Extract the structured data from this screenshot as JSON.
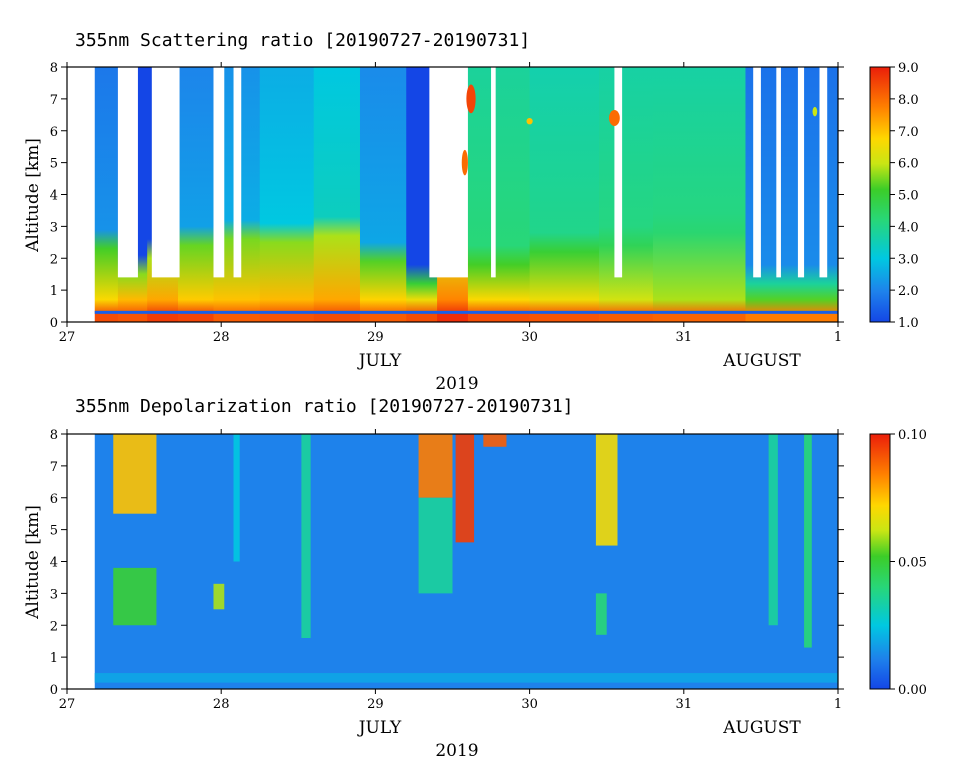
{
  "chart_data": [
    {
      "type": "heatmap",
      "title": "355nm Scattering ratio [20190727-20190731]",
      "ylabel": "Altitude [km]",
      "xlim": [
        27,
        32
      ],
      "ylim": [
        0,
        8
      ],
      "x_ticks": [
        "27",
        "28",
        "29",
        "30",
        "31",
        "1"
      ],
      "y_ticks": [
        "0",
        "1",
        "2",
        "3",
        "4",
        "5",
        "6",
        "7",
        "8"
      ],
      "month_labels": [
        {
          "text": "JULY",
          "x": 29.5
        },
        {
          "text": "AUGUST",
          "x": 31.5
        }
      ],
      "year_label": "2019",
      "colorbar": {
        "min": 1.0,
        "max": 9.0,
        "ticks": [
          "1.0",
          "2.0",
          "3.0",
          "4.0",
          "5.0",
          "6.0",
          "7.0",
          "8.0",
          "9.0"
        ]
      },
      "data_start": 27.18,
      "data_end": 32.0,
      "columns": [
        {
          "x0": 27.18,
          "x1": 27.33,
          "surface": 8.4,
          "low": 5.2,
          "top_km": 2.3,
          "free": 2.2
        },
        {
          "x0": 27.33,
          "x1": 27.52,
          "surface": 8.3,
          "low": 5.6,
          "top_km": 1.5,
          "free": 0
        },
        {
          "x0": 27.52,
          "x1": 27.72,
          "surface": 8.6,
          "low": 5.8,
          "top_km": 2.0,
          "free": 0
        },
        {
          "x0": 27.72,
          "x1": 27.95,
          "surface": 8.5,
          "low": 5.4,
          "top_km": 2.4,
          "free": 2.4
        },
        {
          "x0": 27.95,
          "x1": 28.25,
          "surface": 8.2,
          "low": 5.5,
          "top_km": 2.6,
          "free": 2.6
        },
        {
          "x0": 28.25,
          "x1": 28.6,
          "surface": 8.3,
          "low": 5.6,
          "top_km": 2.5,
          "free": 3.0
        },
        {
          "x0": 28.6,
          "x1": 28.9,
          "surface": 8.4,
          "low": 5.8,
          "top_km": 2.7,
          "free": 3.4
        },
        {
          "x0": 28.9,
          "x1": 29.2,
          "surface": 8.2,
          "low": 5.3,
          "top_km": 1.9,
          "free": 2.5
        },
        {
          "x0": 29.2,
          "x1": 29.4,
          "surface": 8.4,
          "low": 5.0,
          "top_km": 1.2,
          "free": 0
        },
        {
          "x0": 29.4,
          "x1": 29.6,
          "surface": 8.8,
          "low": 6.2,
          "top_km": 2.3,
          "free": 3.8
        },
        {
          "x0": 29.6,
          "x1": 30.0,
          "surface": 8.4,
          "low": 5.2,
          "top_km": 1.8,
          "free": 4.2
        },
        {
          "x0": 30.0,
          "x1": 30.45,
          "surface": 8.3,
          "low": 5.0,
          "top_km": 2.2,
          "free": 4.0
        },
        {
          "x0": 30.45,
          "x1": 30.8,
          "surface": 8.2,
          "low": 4.6,
          "top_km": 2.4,
          "free": 4.1
        },
        {
          "x0": 30.8,
          "x1": 31.4,
          "surface": 8.1,
          "low": 4.3,
          "top_km": 2.8,
          "free": 4.1
        },
        {
          "x0": 31.4,
          "x1": 32.0,
          "surface": 7.8,
          "low": 3.8,
          "top_km": 1.2,
          "free": 2.1
        }
      ],
      "clear_gaps": [
        [
          27.33,
          27.46
        ],
        [
          27.55,
          27.73
        ],
        [
          27.95,
          28.02
        ],
        [
          28.08,
          28.13
        ],
        [
          29.35,
          29.6
        ],
        [
          29.75,
          29.78
        ],
        [
          30.55,
          30.6
        ],
        [
          31.45,
          31.5
        ],
        [
          31.6,
          31.63
        ],
        [
          31.74,
          31.78
        ],
        [
          31.88,
          31.93
        ]
      ],
      "clouds": [
        {
          "x": 29.62,
          "z": 7.0,
          "w": 0.06,
          "h": 0.9,
          "value": 8.5
        },
        {
          "x": 29.58,
          "z": 5.0,
          "w": 0.04,
          "h": 0.8,
          "value": 8.0
        },
        {
          "x": 30.55,
          "z": 6.4,
          "w": 0.07,
          "h": 0.5,
          "value": 8.0
        },
        {
          "x": 30.0,
          "z": 6.3,
          "w": 0.04,
          "h": 0.2,
          "value": 7.0
        },
        {
          "x": 31.85,
          "z": 6.6,
          "w": 0.03,
          "h": 0.3,
          "value": 6.0
        }
      ]
    },
    {
      "type": "heatmap",
      "title": "355nm Depolarization ratio [20190727-20190731]",
      "ylabel": "Altitude [km]",
      "xlim": [
        27,
        32
      ],
      "ylim": [
        0,
        8
      ],
      "x_ticks": [
        "27",
        "28",
        "29",
        "30",
        "31",
        "1"
      ],
      "y_ticks": [
        "0",
        "1",
        "2",
        "3",
        "4",
        "5",
        "6",
        "7",
        "8"
      ],
      "month_labels": [
        {
          "text": "JULY",
          "x": 29.5
        },
        {
          "text": "AUGUST",
          "x": 31.5
        }
      ],
      "year_label": "2019",
      "colorbar": {
        "min": 0.0,
        "max": 0.1,
        "ticks": [
          "0.00",
          "0.05",
          "0.10"
        ]
      },
      "data_start": 27.18,
      "data_end": 32.0,
      "background": 0.012,
      "near_surface": 0.018,
      "features": [
        {
          "x0": 27.3,
          "x1": 27.58,
          "z0": 5.5,
          "z1": 8.0,
          "value": 0.075
        },
        {
          "x0": 27.3,
          "x1": 27.58,
          "z0": 2.0,
          "z1": 3.8,
          "value": 0.05
        },
        {
          "x0": 27.95,
          "x1": 28.02,
          "z0": 2.5,
          "z1": 3.3,
          "value": 0.06
        },
        {
          "x0": 28.08,
          "x1": 28.12,
          "z0": 4.0,
          "z1": 8.0,
          "value": 0.025
        },
        {
          "x0": 28.52,
          "x1": 28.58,
          "z0": 1.6,
          "z1": 8.0,
          "value": 0.035
        },
        {
          "x0": 29.28,
          "x1": 29.5,
          "z0": 6.0,
          "z1": 8.0,
          "value": 0.085
        },
        {
          "x0": 29.28,
          "x1": 29.5,
          "z0": 3.0,
          "z1": 6.0,
          "value": 0.035
        },
        {
          "x0": 29.52,
          "x1": 29.64,
          "z0": 4.6,
          "z1": 8.0,
          "value": 0.095
        },
        {
          "x0": 29.7,
          "x1": 29.85,
          "z0": 7.6,
          "z1": 8.0,
          "value": 0.09
        },
        {
          "x0": 30.43,
          "x1": 30.57,
          "z0": 4.5,
          "z1": 8.0,
          "value": 0.07
        },
        {
          "x0": 30.43,
          "x1": 30.5,
          "z0": 1.7,
          "z1": 3.0,
          "value": 0.04
        },
        {
          "x0": 31.55,
          "x1": 31.61,
          "z0": 2.0,
          "z1": 8.0,
          "value": 0.035
        },
        {
          "x0": 31.78,
          "x1": 31.83,
          "z0": 1.3,
          "z1": 8.0,
          "value": 0.04
        }
      ]
    }
  ]
}
